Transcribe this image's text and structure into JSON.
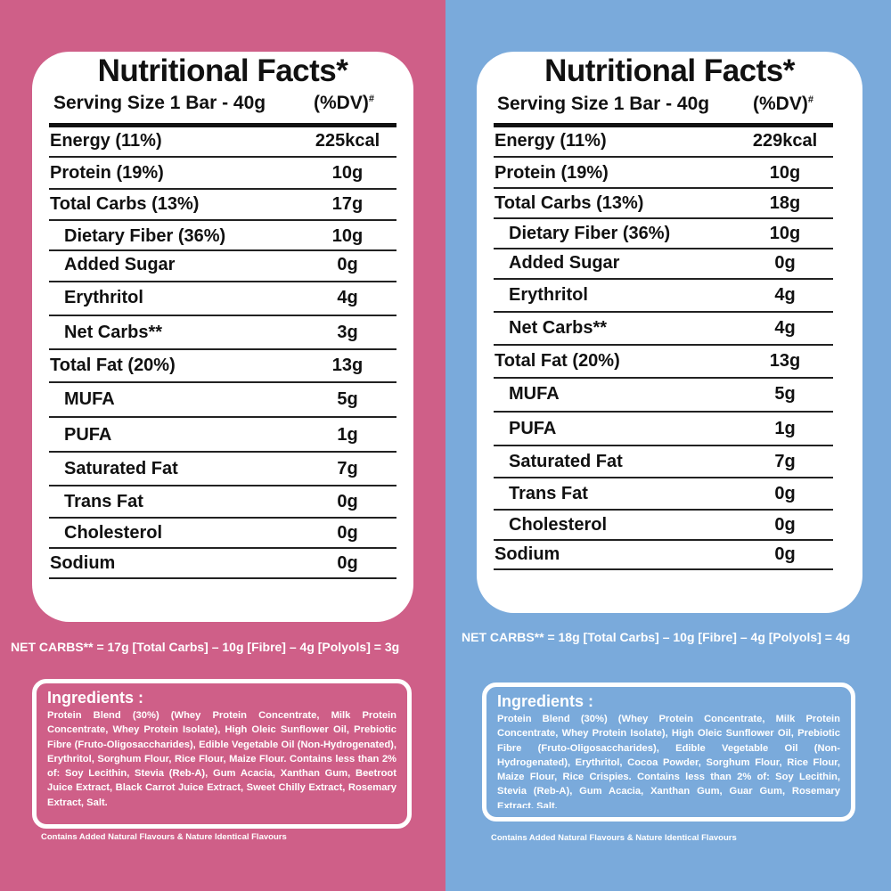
{
  "colors": {
    "left": "#cf5f88",
    "right": "#7aaadb"
  },
  "panels": [
    {
      "title": "Nutritional Facts*",
      "serving": "Serving Size 1 Bar - 40g",
      "dv": "(%DV)",
      "dv_mark": "#",
      "rows": [
        {
          "label": "Energy (11%)",
          "value": "225kcal",
          "indent": false
        },
        {
          "label": "Protein (19%)",
          "value": "10g",
          "indent": false
        },
        {
          "label": "Total Carbs (13%)",
          "value": "17g",
          "indent": false
        },
        {
          "label": "Dietary Fiber (36%)",
          "value": "10g",
          "indent": true
        },
        {
          "label": "Added Sugar",
          "value": "0g",
          "indent": true
        },
        {
          "label": "Erythritol",
          "value": "4g",
          "indent": true
        },
        {
          "label": "Net Carbs**",
          "value": "3g",
          "indent": true
        },
        {
          "label": "Total Fat (20%)",
          "value": "13g",
          "indent": false
        },
        {
          "label": "MUFA",
          "value": "5g",
          "indent": true
        },
        {
          "label": "PUFA",
          "value": "1g",
          "indent": true
        },
        {
          "label": "Saturated Fat",
          "value": "7g",
          "indent": true
        },
        {
          "label": "Trans Fat",
          "value": "0g",
          "indent": true
        },
        {
          "label": "Cholesterol",
          "value": "0g",
          "indent": true
        },
        {
          "label": "Sodium",
          "value": "0g",
          "indent": false
        }
      ],
      "net_carbs_note": "NET CARBS** = 17g [Total Carbs] – 10g [Fibre] – 4g [Polyols] = 3g",
      "ingredients_title": "Ingredients :",
      "ingredients": "Protein Blend (30%) (Whey Protein Concentrate, Milk Protein Concentrate, Whey Protein Isolate), High Oleic Sunflower Oil, Prebiotic Fibre (Fruto-Oligosaccharides), Edible Vegetable Oil (Non-Hydrogenated), Erythritol, Sorghum Flour, Rice Flour, Maize Flour. Contains less than 2% of: Soy Lecithin, Stevia (Reb-A), Gum Acacia, Xanthan Gum, Beetroot Juice Extract, Black Carrot Juice Extract, Sweet Chilly Extract, Rosemary Extract, Salt.",
      "footer": "Contains Added Natural Flavours & Nature Identical Flavours"
    },
    {
      "title": "Nutritional Facts*",
      "serving": "Serving Size 1 Bar - 40g",
      "dv": "(%DV)",
      "dv_mark": "#",
      "rows": [
        {
          "label": "Energy (11%)",
          "value": "229kcal",
          "indent": false
        },
        {
          "label": "Protein (19%)",
          "value": "10g",
          "indent": false
        },
        {
          "label": "Total Carbs (13%)",
          "value": "18g",
          "indent": false
        },
        {
          "label": "Dietary Fiber (36%)",
          "value": "10g",
          "indent": true
        },
        {
          "label": "Added Sugar",
          "value": "0g",
          "indent": true
        },
        {
          "label": "Erythritol",
          "value": "4g",
          "indent": true
        },
        {
          "label": "Net Carbs**",
          "value": "4g",
          "indent": true
        },
        {
          "label": "Total Fat (20%)",
          "value": "13g",
          "indent": false
        },
        {
          "label": "MUFA",
          "value": "5g",
          "indent": true
        },
        {
          "label": "PUFA",
          "value": "1g",
          "indent": true
        },
        {
          "label": "Saturated Fat",
          "value": "7g",
          "indent": true
        },
        {
          "label": "Trans Fat",
          "value": "0g",
          "indent": true
        },
        {
          "label": "Cholesterol",
          "value": "0g",
          "indent": true
        },
        {
          "label": "Sodium",
          "value": "0g",
          "indent": false
        }
      ],
      "net_carbs_note": "NET CARBS** = 18g [Total Carbs] – 10g [Fibre] – 4g [Polyols] = 4g",
      "ingredients_title": "Ingredients :",
      "ingredients": "Protein Blend (30%) (Whey Protein Concentrate, Milk Protein Concentrate, Whey Protein Isolate), High Oleic Sunflower Oil, Prebiotic Fibre (Fruto-Oligosaccharides), Edible Vegetable Oil (Non-Hydrogenated), Erythritol, Cocoa Powder, Sorghum Flour, Rice Flour, Maize Flour, Rice Crispies. Contains less than 2% of: Soy Lecithin, Stevia (Reb-A), Gum Acacia, Xanthan Gum, Guar Gum, Rosemary Extract, Salt.",
      "footer": "Contains Added Natural Flavours & Nature Identical Flavours"
    }
  ]
}
